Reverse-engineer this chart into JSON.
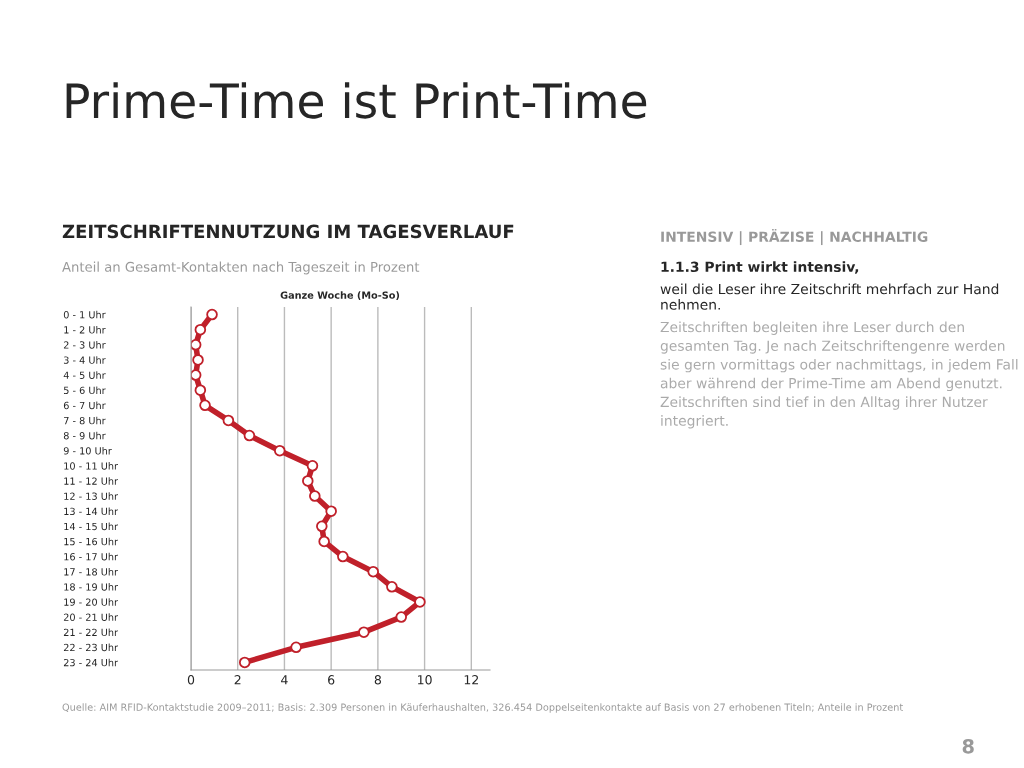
{
  "chart_data": {
    "type": "line",
    "orientation": "horizontal",
    "title": "Prime-Time ist Print-Time",
    "subtitle": "ZEITSCHRIFTENNUTZUNG IM TAGESVERLAUF",
    "annotations": [
      "Anteil an Gesamt-Kontakten nach Tageszeit in Prozent",
      "Ganze Woche (Mo-So)",
      "Quelle: AIM RFID-Kontaktstudie 2009–2011; Basis: 2.309 Personen in Käuferhaushalten, 326.454 Doppelseitenkontakte auf Basis von 27 erhobenen Titeln; Anteile in Prozent",
      "INTENSIV | PRÄZISE | NACHHALTIG",
      "1.1.3 Print wirkt intensiv,",
      "weil die Leser ihre Zeitschrift mehrfach zur Hand nehmen.",
      "Zeitschriften begleiten ihre Leser durch den gesamten Tag. Je nach Zeitschriftengenre werden sie gern vormittags oder nachmittags, in jedem Fall aber während der Prime-Time am Abend genutzt. Zeitschriften sind tief in den Alltag ihrer Nutzer integriert.",
      "8"
    ],
    "categories": [
      "0 - 1 Uhr",
      "1 - 2 Uhr",
      "2 - 3 Uhr",
      "3 - 4 Uhr",
      "4 - 5 Uhr",
      "5 - 6 Uhr",
      "6 - 7 Uhr",
      "7 - 8 Uhr",
      "8 - 9 Uhr",
      "9 - 10 Uhr",
      "10 - 11 Uhr",
      "11 - 12 Uhr",
      "12 - 13 Uhr",
      "13 - 14 Uhr",
      "14 - 15 Uhr",
      "15 - 16 Uhr",
      "16 - 17 Uhr",
      "17 - 18 Uhr",
      "18 - 19 Uhr",
      "19 - 20 Uhr",
      "20 - 21 Uhr",
      "21 - 22 Uhr",
      "22 - 23 Uhr",
      "23 - 24 Uhr"
    ],
    "series": [
      {
        "color": "#c0202a",
        "values": [
          0.9,
          0.4,
          0.2,
          0.3,
          0.2,
          0.4,
          0.6,
          1.6,
          2.5,
          3.8,
          5.2,
          5.0,
          5.3,
          6.0,
          5.6,
          5.7,
          6.5,
          7.8,
          8.6,
          9.8,
          9.0,
          7.4,
          4.5,
          2.3
        ]
      }
    ],
    "xlim": [
      0,
      12.8
    ],
    "xticks": [
      0,
      2,
      4,
      6,
      8,
      10,
      12
    ],
    "grid": "x",
    "marker": "circle",
    "line_style": "solid",
    "legend": false
  }
}
